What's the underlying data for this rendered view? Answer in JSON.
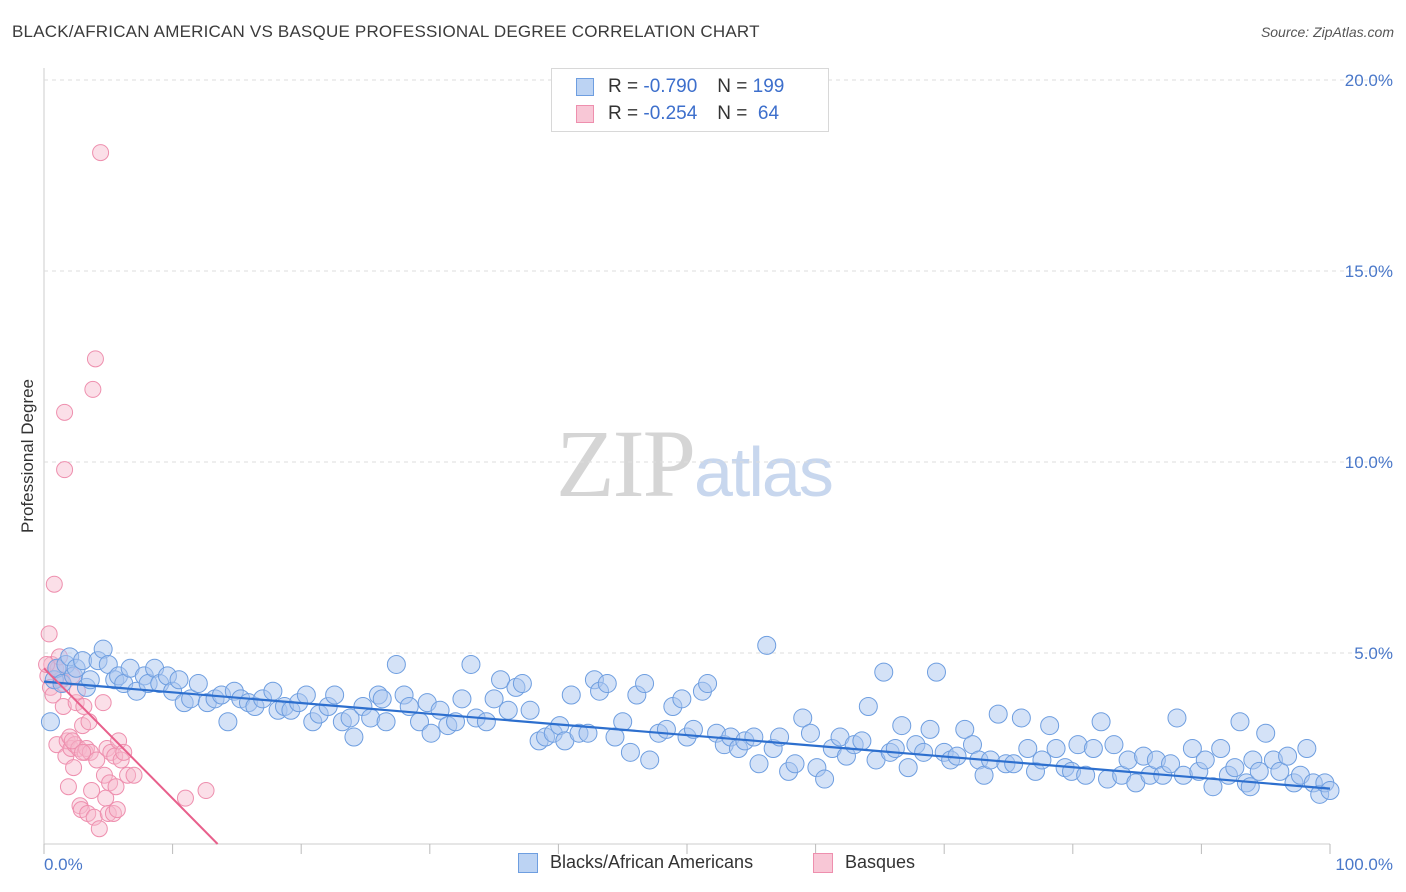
{
  "title": "BLACK/AFRICAN AMERICAN VS BASQUE PROFESSIONAL DEGREE CORRELATION CHART",
  "source": "Source: ZipAtlas.com",
  "watermark": {
    "zip": "ZIP",
    "atlas": "atlas"
  },
  "legend": {
    "rows": [
      {
        "r_label": "R =",
        "r_value": "-0.790",
        "n_label": "N =",
        "n_value": "199"
      },
      {
        "r_label": "R =",
        "r_value": "-0.254",
        "n_label": "N =",
        "n_value": " 64"
      }
    ]
  },
  "bottom_legend": [
    {
      "label": "Blacks/African Americans"
    },
    {
      "label": "Basques"
    }
  ],
  "colors": {
    "blue_fill": "#a9c6ef",
    "blue_stroke": "#6e9ee0",
    "blue_line": "#2d6fce",
    "pink_fill": "#f6b8cb",
    "pink_stroke": "#ee8fae",
    "pink_line": "#e8608c",
    "grid": "#dddddd",
    "tick_text": "#4a78c9"
  },
  "chart_data": {
    "type": "scatter",
    "title": "BLACK/AFRICAN AMERICAN VS BASQUE PROFESSIONAL DEGREE CORRELATION CHART",
    "xlabel": "",
    "ylabel": "Professional Degree",
    "xlim": [
      0,
      100
    ],
    "ylim": [
      0,
      20
    ],
    "x_tick_labels": [
      {
        "value": 0,
        "label": "0.0%"
      },
      {
        "value": 100,
        "label": "100.0%"
      }
    ],
    "y_tick_labels": [
      {
        "value": 5,
        "label": "5.0%"
      },
      {
        "value": 10,
        "label": "10.0%"
      },
      {
        "value": 15,
        "label": "15.0%"
      },
      {
        "value": 20,
        "label": "20.0%"
      }
    ],
    "series": [
      {
        "name": "Blacks/African Americans",
        "r": -0.79,
        "n": 199,
        "trend": {
          "x0": 0,
          "y0": 4.25,
          "x1": 100,
          "y1": 1.45
        },
        "points": [
          [
            0.5,
            3.2
          ],
          [
            0.8,
            4.3
          ],
          [
            1.0,
            4.6
          ],
          [
            1.4,
            4.2
          ],
          [
            1.7,
            4.7
          ],
          [
            2,
            4.9
          ],
          [
            2.3,
            4.4
          ],
          [
            2.5,
            4.6
          ],
          [
            3,
            4.8
          ],
          [
            3.3,
            4.1
          ],
          [
            3.6,
            4.3
          ],
          [
            4.2,
            4.8
          ],
          [
            4.6,
            5.1
          ],
          [
            5,
            4.7
          ],
          [
            5.5,
            4.3
          ],
          [
            5.8,
            4.4
          ],
          [
            6.2,
            4.2
          ],
          [
            6.7,
            4.6
          ],
          [
            7.2,
            4.0
          ],
          [
            7.8,
            4.4
          ],
          [
            8.1,
            4.2
          ],
          [
            8.6,
            4.6
          ],
          [
            9,
            4.2
          ],
          [
            9.6,
            4.4
          ],
          [
            10,
            4.0
          ],
          [
            10.5,
            4.3
          ],
          [
            10.9,
            3.7
          ],
          [
            11.4,
            3.8
          ],
          [
            12,
            4.2
          ],
          [
            12.7,
            3.7
          ],
          [
            13.3,
            3.8
          ],
          [
            13.8,
            3.9
          ],
          [
            14.3,
            3.2
          ],
          [
            14.8,
            4.0
          ],
          [
            15.3,
            3.8
          ],
          [
            15.9,
            3.7
          ],
          [
            16.4,
            3.6
          ],
          [
            17,
            3.8
          ],
          [
            17.8,
            4.0
          ],
          [
            18.2,
            3.5
          ],
          [
            18.7,
            3.6
          ],
          [
            19.2,
            3.5
          ],
          [
            19.8,
            3.7
          ],
          [
            20.4,
            3.9
          ],
          [
            20.9,
            3.2
          ],
          [
            21.4,
            3.4
          ],
          [
            22.1,
            3.6
          ],
          [
            22.6,
            3.9
          ],
          [
            23.2,
            3.2
          ],
          [
            23.8,
            3.3
          ],
          [
            24.1,
            2.8
          ],
          [
            24.8,
            3.6
          ],
          [
            25.4,
            3.3
          ],
          [
            26,
            3.9
          ],
          [
            26.3,
            3.8
          ],
          [
            26.6,
            3.2
          ],
          [
            27.4,
            4.7
          ],
          [
            28,
            3.9
          ],
          [
            28.4,
            3.6
          ],
          [
            29.2,
            3.2
          ],
          [
            29.8,
            3.7
          ],
          [
            30.1,
            2.9
          ],
          [
            30.8,
            3.5
          ],
          [
            31.4,
            3.1
          ],
          [
            32,
            3.2
          ],
          [
            32.5,
            3.8
          ],
          [
            33.2,
            4.7
          ],
          [
            33.6,
            3.3
          ],
          [
            34.4,
            3.2
          ],
          [
            35,
            3.8
          ],
          [
            35.5,
            4.3
          ],
          [
            36.1,
            3.5
          ],
          [
            36.7,
            4.1
          ],
          [
            37.2,
            4.2
          ],
          [
            37.8,
            3.5
          ],
          [
            38.5,
            2.7
          ],
          [
            39,
            2.8
          ],
          [
            39.6,
            2.9
          ],
          [
            40.1,
            3.1
          ],
          [
            40.5,
            2.7
          ],
          [
            41,
            3.9
          ],
          [
            41.6,
            2.9
          ],
          [
            42.3,
            2.9
          ],
          [
            42.8,
            4.3
          ],
          [
            43.2,
            4.0
          ],
          [
            43.8,
            4.2
          ],
          [
            44.4,
            2.8
          ],
          [
            45,
            3.2
          ],
          [
            45.6,
            2.4
          ],
          [
            46.1,
            3.9
          ],
          [
            46.7,
            4.2
          ],
          [
            47.1,
            2.2
          ],
          [
            47.8,
            2.9
          ],
          [
            48.4,
            3.0
          ],
          [
            48.9,
            3.6
          ],
          [
            49.6,
            3.8
          ],
          [
            50,
            2.8
          ],
          [
            50.5,
            3.0
          ],
          [
            51.2,
            4.0
          ],
          [
            51.6,
            4.2
          ],
          [
            52.3,
            2.9
          ],
          [
            52.9,
            2.6
          ],
          [
            53.4,
            2.8
          ],
          [
            54,
            2.5
          ],
          [
            54.5,
            2.7
          ],
          [
            55.2,
            2.8
          ],
          [
            55.6,
            2.1
          ],
          [
            56.2,
            5.2
          ],
          [
            56.7,
            2.5
          ],
          [
            57.2,
            2.8
          ],
          [
            57.9,
            1.9
          ],
          [
            58.4,
            2.1
          ],
          [
            59,
            3.3
          ],
          [
            59.6,
            2.9
          ],
          [
            60.1,
            2.0
          ],
          [
            60.7,
            1.7
          ],
          [
            61.3,
            2.5
          ],
          [
            61.9,
            2.8
          ],
          [
            62.4,
            2.3
          ],
          [
            63,
            2.6
          ],
          [
            63.6,
            2.7
          ],
          [
            64.1,
            3.6
          ],
          [
            64.7,
            2.2
          ],
          [
            65.3,
            4.5
          ],
          [
            65.8,
            2.4
          ],
          [
            66.2,
            2.5
          ],
          [
            66.7,
            3.1
          ],
          [
            67.2,
            2.0
          ],
          [
            67.8,
            2.6
          ],
          [
            68.4,
            2.4
          ],
          [
            68.9,
            3.0
          ],
          [
            69.4,
            4.5
          ],
          [
            70,
            2.4
          ],
          [
            70.5,
            2.2
          ],
          [
            71,
            2.3
          ],
          [
            71.6,
            3.0
          ],
          [
            72.2,
            2.6
          ],
          [
            72.7,
            2.2
          ],
          [
            73.1,
            1.8
          ],
          [
            73.6,
            2.2
          ],
          [
            74.2,
            3.4
          ],
          [
            74.8,
            2.1
          ],
          [
            75.4,
            2.1
          ],
          [
            76,
            3.3
          ],
          [
            76.5,
            2.5
          ],
          [
            77.1,
            1.9
          ],
          [
            77.6,
            2.2
          ],
          [
            78.2,
            3.1
          ],
          [
            78.7,
            2.5
          ],
          [
            79.4,
            2.0
          ],
          [
            79.9,
            1.9
          ],
          [
            80.4,
            2.6
          ],
          [
            81,
            1.8
          ],
          [
            81.6,
            2.5
          ],
          [
            82.2,
            3.2
          ],
          [
            82.7,
            1.7
          ],
          [
            83.2,
            2.6
          ],
          [
            83.8,
            1.8
          ],
          [
            84.3,
            2.2
          ],
          [
            84.9,
            1.6
          ],
          [
            85.5,
            2.3
          ],
          [
            86,
            1.8
          ],
          [
            86.5,
            2.2
          ],
          [
            87,
            1.8
          ],
          [
            87.6,
            2.1
          ],
          [
            88.1,
            3.3
          ],
          [
            88.6,
            1.8
          ],
          [
            89.3,
            2.5
          ],
          [
            89.8,
            1.9
          ],
          [
            90.3,
            2.2
          ],
          [
            90.9,
            1.5
          ],
          [
            91.5,
            2.5
          ],
          [
            92.1,
            1.8
          ],
          [
            92.6,
            2.0
          ],
          [
            93,
            3.2
          ],
          [
            93.5,
            1.6
          ],
          [
            94,
            2.2
          ],
          [
            94.5,
            1.9
          ],
          [
            95,
            2.9
          ],
          [
            95.6,
            2.2
          ],
          [
            96.1,
            1.9
          ],
          [
            96.7,
            2.3
          ],
          [
            97.2,
            1.6
          ],
          [
            97.7,
            1.8
          ],
          [
            98.2,
            2.5
          ],
          [
            98.7,
            1.6
          ],
          [
            99.2,
            1.3
          ],
          [
            99.6,
            1.6
          ],
          [
            100,
            1.4
          ],
          [
            93.8,
            1.5
          ]
        ]
      },
      {
        "name": "Basques",
        "r": -0.254,
        "n": 64,
        "trend": {
          "x0": 0,
          "y0": 4.6,
          "x1": 13.5,
          "y1": 0
        },
        "points": [
          [
            0.3,
            4.4
          ],
          [
            0.4,
            5.5
          ],
          [
            0.5,
            4.1
          ],
          [
            0.6,
            4.7
          ],
          [
            0.7,
            3.9
          ],
          [
            0.8,
            6.8
          ],
          [
            0.9,
            4.6
          ],
          [
            1.0,
            2.6
          ],
          [
            1.1,
            4.6
          ],
          [
            1.2,
            4.9
          ],
          [
            1.4,
            4.3
          ],
          [
            1.5,
            3.6
          ],
          [
            1.6,
            11.3
          ],
          [
            1.6,
            9.8
          ],
          [
            1.7,
            2.3
          ],
          [
            1.8,
            2.7
          ],
          [
            1.9,
            1.5
          ],
          [
            2.0,
            2.8
          ],
          [
            2.1,
            2.5
          ],
          [
            2.2,
            4.4
          ],
          [
            2.3,
            2.0
          ],
          [
            2.4,
            2.6
          ],
          [
            2.5,
            3.7
          ],
          [
            2.6,
            4.0
          ],
          [
            2.7,
            2.5
          ],
          [
            2.8,
            1.0
          ],
          [
            2.9,
            0.9
          ],
          [
            3.0,
            3.1
          ],
          [
            3.1,
            3.6
          ],
          [
            3.2,
            2.4
          ],
          [
            3.3,
            2.5
          ],
          [
            3.4,
            0.8
          ],
          [
            3.5,
            3.2
          ],
          [
            3.6,
            2.4
          ],
          [
            3.7,
            1.4
          ],
          [
            3.8,
            11.9
          ],
          [
            3.9,
            0.7
          ],
          [
            4.0,
            12.7
          ],
          [
            4.1,
            2.2
          ],
          [
            4.3,
            0.4
          ],
          [
            4.4,
            18.1
          ],
          [
            4.6,
            3.7
          ],
          [
            4.7,
            1.8
          ],
          [
            4.8,
            1.2
          ],
          [
            4.9,
            2.5
          ],
          [
            5.0,
            0.8
          ],
          [
            5.1,
            1.6
          ],
          [
            5.2,
            2.4
          ],
          [
            5.4,
            0.8
          ],
          [
            5.5,
            2.3
          ],
          [
            5.6,
            1.5
          ],
          [
            5.7,
            0.9
          ],
          [
            5.8,
            2.7
          ],
          [
            6.0,
            2.2
          ],
          [
            6.2,
            2.4
          ],
          [
            6.5,
            1.8
          ],
          [
            7.0,
            1.8
          ],
          [
            11.0,
            1.2
          ],
          [
            12.6,
            1.4
          ],
          [
            1.3,
            4.3
          ],
          [
            0.2,
            4.7
          ],
          [
            1.5,
            4.2
          ],
          [
            2.2,
            2.7
          ],
          [
            3.0,
            2.4
          ]
        ]
      }
    ]
  }
}
